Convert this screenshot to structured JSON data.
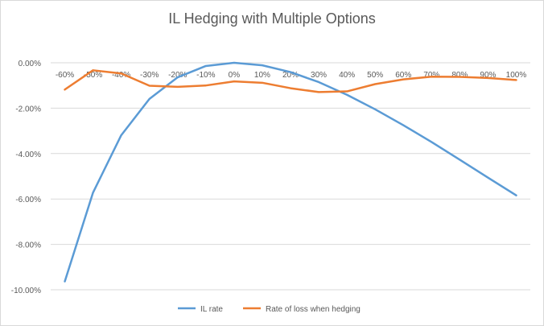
{
  "chart_data": {
    "type": "line",
    "title": "IL Hedging with Multiple Options",
    "categories": [
      "-60%",
      "-50%",
      "-40%",
      "-30%",
      "-20%",
      "-10%",
      "0%",
      "10%",
      "20%",
      "30%",
      "40%",
      "50%",
      "60%",
      "70%",
      "80%",
      "90%",
      "100%"
    ],
    "ylim": [
      -0.1,
      0.0
    ],
    "yticks": [
      0.0,
      -0.02,
      -0.04,
      -0.06,
      -0.08,
      -0.1
    ],
    "ytick_labels": [
      "0.00%",
      "-2.00%",
      "-4.00%",
      "-6.00%",
      "-8.00%",
      "-10.00%"
    ],
    "grid": true,
    "legend_position": "bottom",
    "series": [
      {
        "name": "IL rate",
        "color": "#5b9bd5",
        "values": [
          -0.0963,
          -0.0572,
          -0.0319,
          -0.0159,
          -0.0064,
          -0.0014,
          0.0,
          -0.0011,
          -0.0041,
          -0.0085,
          -0.0141,
          -0.0205,
          -0.0275,
          -0.0349,
          -0.0427,
          -0.0506,
          -0.0584
        ]
      },
      {
        "name": "Rate of loss when hedging",
        "color": "#ed7d31",
        "values": [
          -0.0118,
          -0.0033,
          -0.0047,
          -0.0101,
          -0.0106,
          -0.01,
          -0.0082,
          -0.0088,
          -0.0112,
          -0.0129,
          -0.0126,
          -0.0094,
          -0.0073,
          -0.0061,
          -0.0062,
          -0.0067,
          -0.0076
        ]
      }
    ]
  }
}
